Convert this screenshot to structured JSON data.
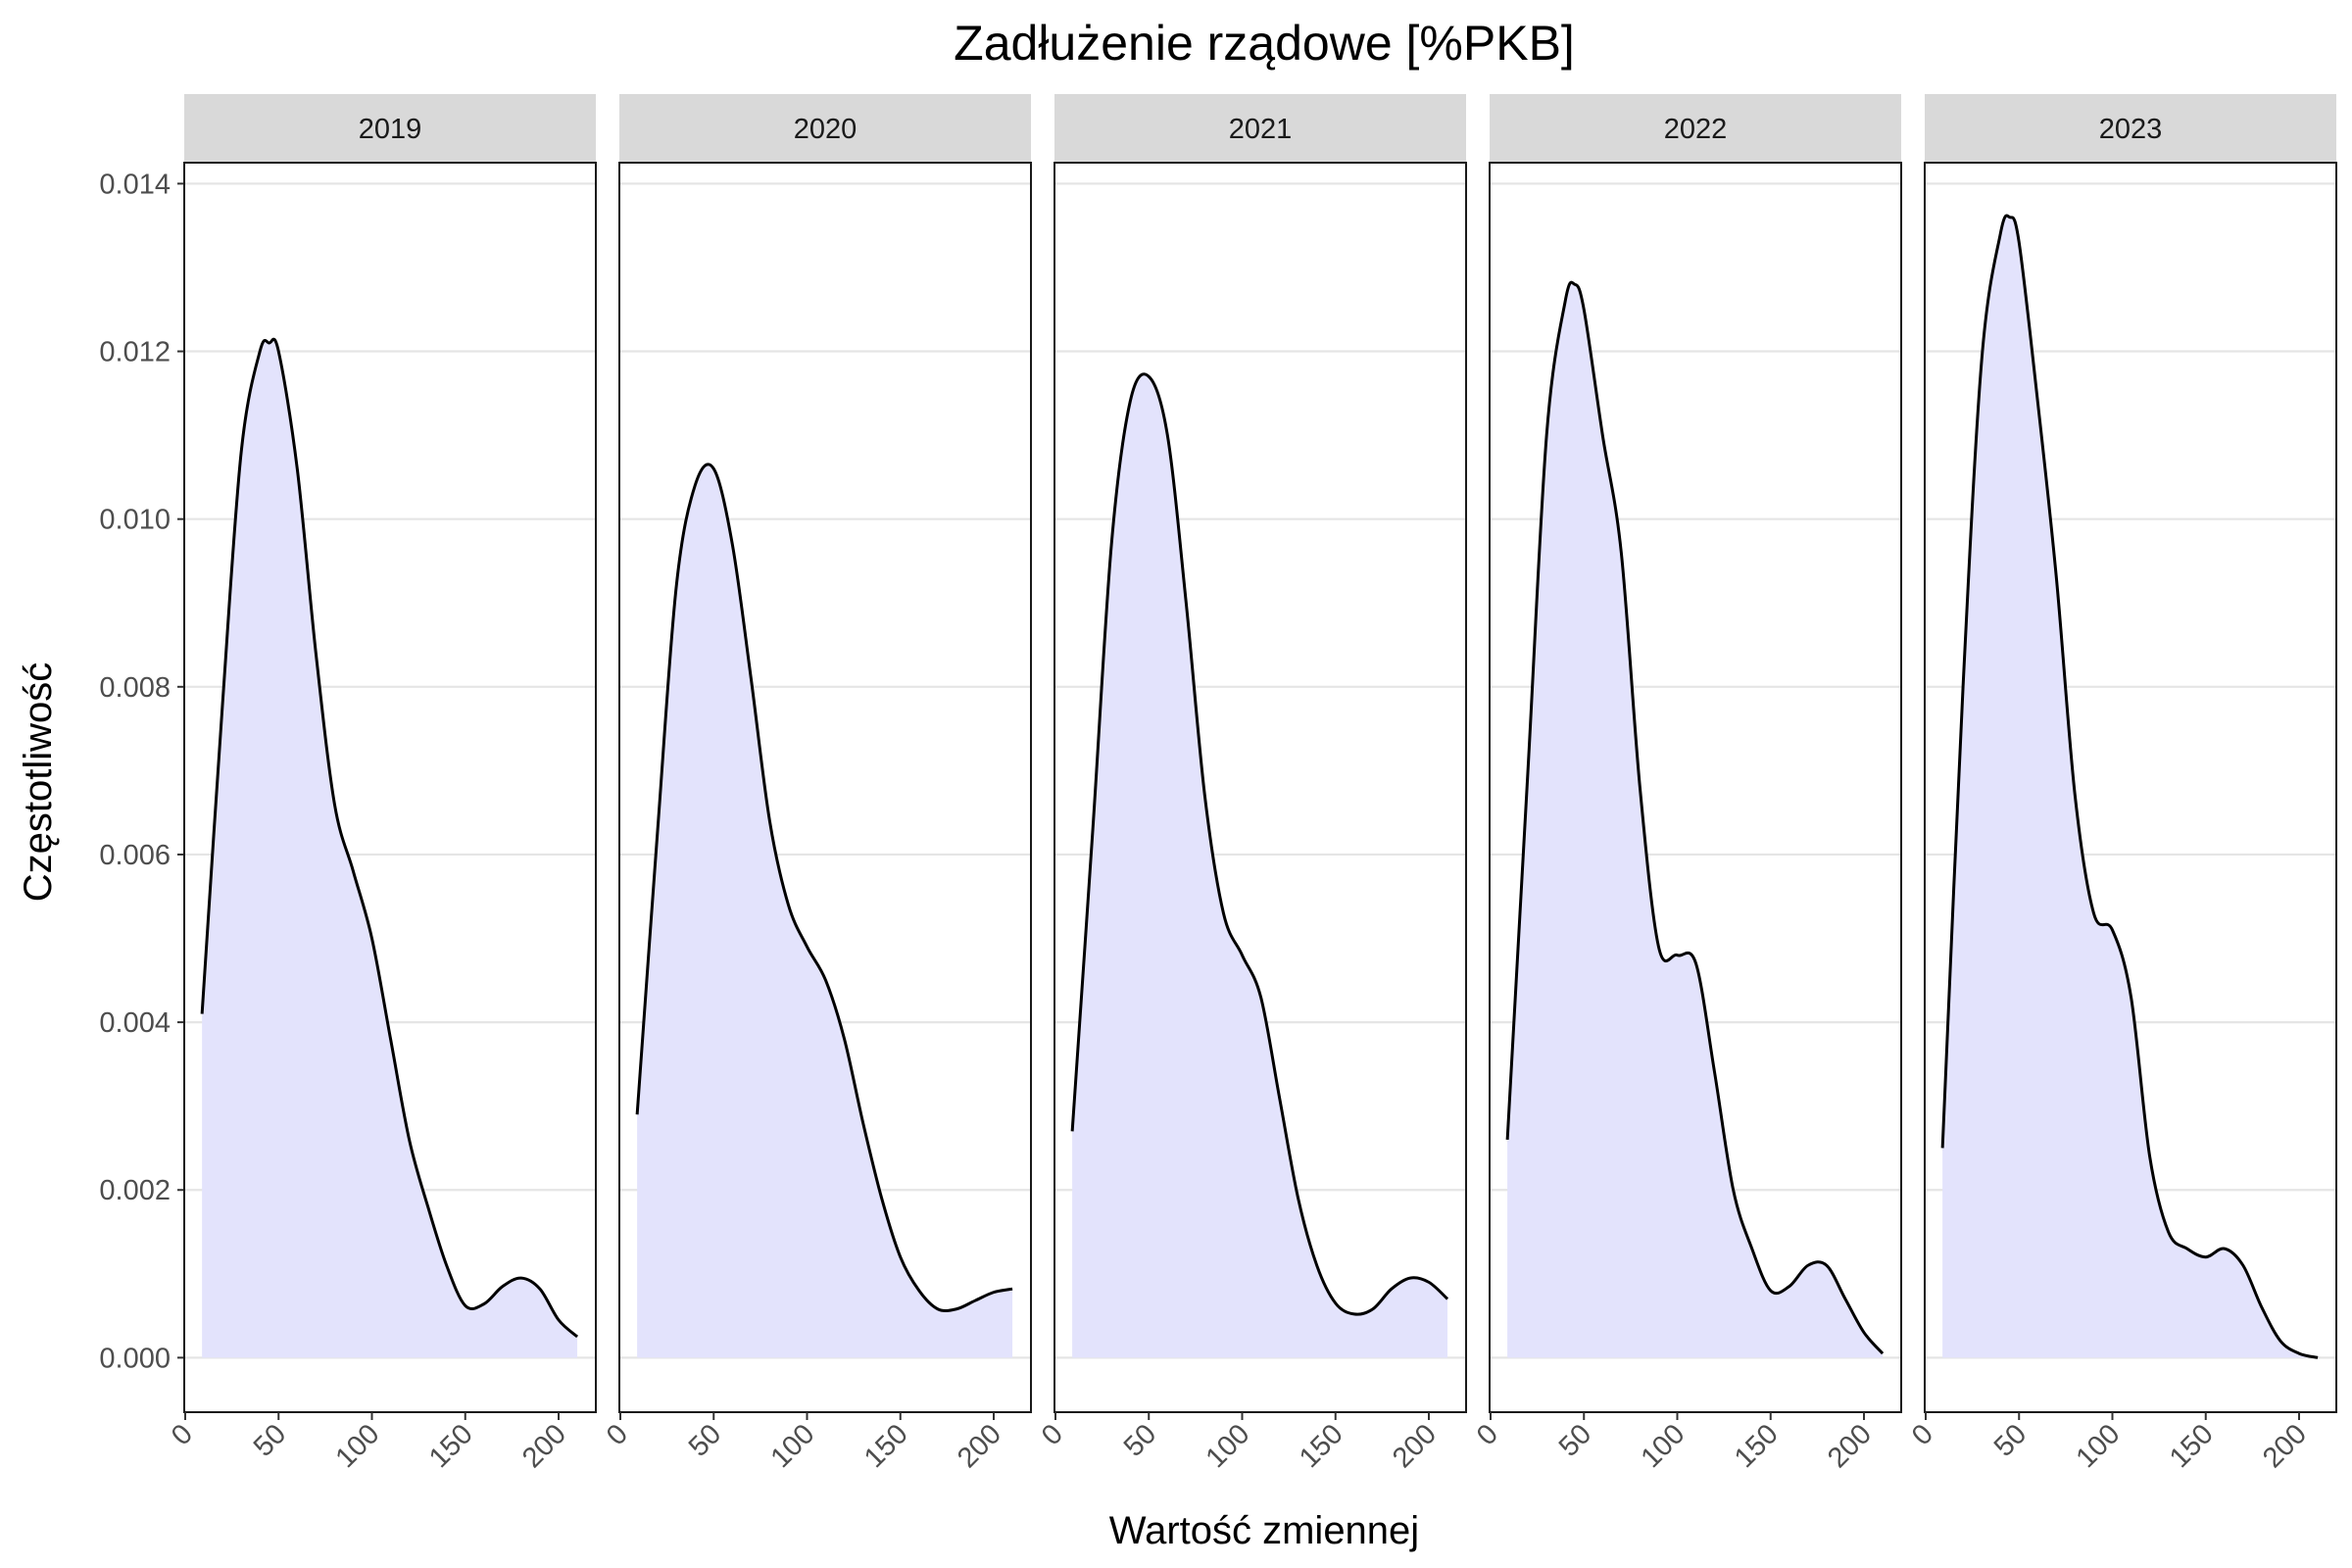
{
  "chart_data": {
    "type": "area",
    "title": "Zadłużenie rządowe [%PKB]",
    "xlabel": "Wartość zmiennej",
    "ylabel": "Częstotliwość",
    "xlim": [
      0,
      220
    ],
    "ylim": [
      -0.00065,
      0.01425
    ],
    "x_ticks": [
      "0",
      "50",
      "100",
      "150",
      "200"
    ],
    "y_ticks": [
      "0.000",
      "0.002",
      "0.004",
      "0.006",
      "0.008",
      "0.010",
      "0.012",
      "0.014"
    ],
    "grid": true,
    "legend": "none",
    "colors": {
      "fill": "#e3e3fc",
      "line": "#000000",
      "strip": "#d9d9d9",
      "grid": "#e5e5e5"
    },
    "panels": [
      {
        "label": "2019",
        "x": [
          9,
          20,
          30,
          40,
          45,
          50,
          60,
          70,
          80,
          90,
          100,
          110,
          120,
          130,
          140,
          150,
          160,
          170,
          180,
          190,
          200,
          210
        ],
        "y": [
          0.0041,
          0.0078,
          0.0108,
          0.012,
          0.0121,
          0.012,
          0.0106,
          0.0084,
          0.0066,
          0.0058,
          0.005,
          0.0038,
          0.0026,
          0.0018,
          0.0011,
          0.00062,
          0.00064,
          0.00085,
          0.00095,
          0.00082,
          0.00045,
          0.00025
        ]
      },
      {
        "label": "2020",
        "x": [
          9,
          20,
          30,
          40,
          50,
          60,
          70,
          80,
          90,
          100,
          110,
          120,
          130,
          140,
          150,
          160,
          170,
          180,
          190,
          200,
          210
        ],
        "y": [
          0.0029,
          0.0063,
          0.0092,
          0.0104,
          0.0106,
          0.0097,
          0.0081,
          0.0064,
          0.0054,
          0.0049,
          0.0045,
          0.0038,
          0.0028,
          0.0019,
          0.0012,
          0.0008,
          0.00058,
          0.00058,
          0.00068,
          0.00078,
          0.00082
        ]
      },
      {
        "label": "2021",
        "x": [
          9,
          20,
          30,
          40,
          50,
          60,
          70,
          80,
          90,
          100,
          110,
          120,
          130,
          140,
          150,
          160,
          170,
          180,
          190,
          200,
          210
        ],
        "y": [
          0.0027,
          0.0063,
          0.0097,
          0.0114,
          0.0117,
          0.011,
          0.009,
          0.0067,
          0.0053,
          0.0048,
          0.0043,
          0.0031,
          0.0019,
          0.0011,
          0.00065,
          0.00052,
          0.00058,
          0.00082,
          0.00095,
          0.0009,
          0.0007
        ]
      },
      {
        "label": "2022",
        "x": [
          9,
          20,
          30,
          40,
          45,
          50,
          60,
          70,
          80,
          90,
          100,
          110,
          120,
          130,
          140,
          150,
          160,
          170,
          180,
          190,
          200,
          210
        ],
        "y": [
          0.0026,
          0.007,
          0.011,
          0.0126,
          0.0128,
          0.0125,
          0.011,
          0.0096,
          0.0068,
          0.0049,
          0.0048,
          0.0047,
          0.0034,
          0.002,
          0.0013,
          0.0008,
          0.00085,
          0.0011,
          0.0011,
          0.0007,
          0.0003,
          5e-05
        ]
      },
      {
        "label": "2023",
        "x": [
          9,
          20,
          30,
          40,
          45,
          50,
          60,
          70,
          80,
          90,
          100,
          110,
          120,
          130,
          140,
          150,
          160,
          170,
          180,
          190,
          200,
          210
        ],
        "y": [
          0.0025,
          0.008,
          0.0119,
          0.0134,
          0.0136,
          0.0133,
          0.0114,
          0.0093,
          0.0067,
          0.0053,
          0.0051,
          0.0043,
          0.0024,
          0.0015,
          0.0013,
          0.0012,
          0.0013,
          0.0011,
          0.0006,
          0.0002,
          5e-05,
          0.0
        ]
      }
    ]
  }
}
